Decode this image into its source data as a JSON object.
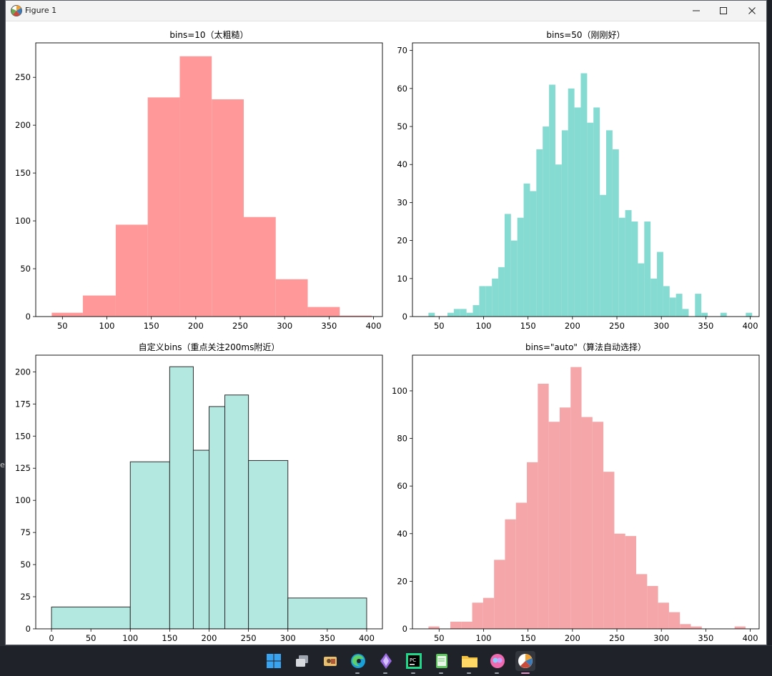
{
  "window": {
    "title": "Figure 1",
    "edge_text": "e"
  },
  "taskbar": {
    "icons": [
      "windows-start-icon",
      "task-view-icon",
      "file-explorer-icon",
      "edge-browser-icon",
      "visual-studio-icon",
      "pycharm-icon",
      "notepad-icon",
      "folder-icon",
      "copilot-icon",
      "matplotlib-figure-icon"
    ]
  },
  "chart_data": [
    {
      "type": "bar",
      "title": "bins=10（太粗糙）",
      "color": "#ff9999",
      "edgecolor": null,
      "xlim": [
        20,
        410
      ],
      "ylim": [
        0,
        286
      ],
      "xticks": [
        50,
        100,
        150,
        200,
        250,
        300,
        350,
        400
      ],
      "yticks": [
        0,
        50,
        100,
        150,
        200,
        250
      ],
      "bins": [
        {
          "x0": 38,
          "x1": 73,
          "y": 4
        },
        {
          "x0": 73,
          "x1": 110,
          "y": 22
        },
        {
          "x0": 110,
          "x1": 146,
          "y": 96
        },
        {
          "x0": 146,
          "x1": 182,
          "y": 229
        },
        {
          "x0": 182,
          "x1": 218,
          "y": 272
        },
        {
          "x0": 218,
          "x1": 254,
          "y": 227
        },
        {
          "x0": 254,
          "x1": 290,
          "y": 104
        },
        {
          "x0": 290,
          "x1": 326,
          "y": 39
        },
        {
          "x0": 326,
          "x1": 362,
          "y": 10
        },
        {
          "x0": 362,
          "x1": 398,
          "y": 1
        }
      ]
    },
    {
      "type": "bar",
      "title": "bins=50（刚刚好）",
      "color": "#85dbd1",
      "edgecolor": null,
      "xlim": [
        20,
        410
      ],
      "ylim": [
        0,
        72
      ],
      "xticks": [
        50,
        100,
        150,
        200,
        250,
        300,
        350,
        400
      ],
      "yticks": [
        0,
        10,
        20,
        30,
        40,
        50,
        60,
        70
      ],
      "bin_start": 38,
      "bin_width": 7.14,
      "values": [
        1,
        0,
        0,
        1,
        2,
        2,
        1,
        3,
        8,
        8,
        10,
        13,
        27,
        20,
        26,
        35,
        33,
        44,
        50,
        61,
        40,
        49,
        60,
        55,
        64,
        51,
        55,
        32,
        49,
        44,
        26,
        28,
        25,
        14,
        25,
        10,
        17,
        8,
        5,
        6,
        2,
        0,
        6,
        1,
        0,
        0,
        1,
        0,
        0,
        0,
        1
      ]
    },
    {
      "type": "bar",
      "title": "自定义bins（重点关注200ms附近）",
      "color": "#b3e8e0",
      "edgecolor": "#2e2e2e",
      "xlim": [
        -20,
        420
      ],
      "ylim": [
        0,
        213
      ],
      "xticks": [
        0,
        50,
        100,
        150,
        200,
        250,
        300,
        350,
        400
      ],
      "yticks": [
        0,
        25,
        50,
        75,
        100,
        125,
        150,
        175,
        200
      ],
      "bins": [
        {
          "x0": 0,
          "x1": 100,
          "y": 17
        },
        {
          "x0": 100,
          "x1": 150,
          "y": 130
        },
        {
          "x0": 150,
          "x1": 180,
          "y": 204
        },
        {
          "x0": 180,
          "x1": 200,
          "y": 139
        },
        {
          "x0": 200,
          "x1": 220,
          "y": 173
        },
        {
          "x0": 220,
          "x1": 250,
          "y": 182
        },
        {
          "x0": 250,
          "x1": 300,
          "y": 131
        },
        {
          "x0": 300,
          "x1": 400,
          "y": 24
        }
      ]
    },
    {
      "type": "bar",
      "title": "bins=\"auto\"（算法自动选择）",
      "color": "#f4a6a8",
      "edgecolor": null,
      "xlim": [
        20,
        410
      ],
      "ylim": [
        0,
        115
      ],
      "xticks": [
        50,
        100,
        150,
        200,
        250,
        300,
        350,
        400
      ],
      "yticks": [
        0,
        20,
        40,
        60,
        80,
        100
      ],
      "bin_start": 38,
      "bin_width": 12.3,
      "values": [
        1,
        0,
        3,
        3,
        11,
        13,
        29,
        46,
        53,
        70,
        103,
        87,
        93,
        110,
        89,
        87,
        66,
        40,
        39,
        23,
        18,
        11,
        7,
        2,
        1,
        0,
        0,
        0,
        1
      ]
    }
  ]
}
